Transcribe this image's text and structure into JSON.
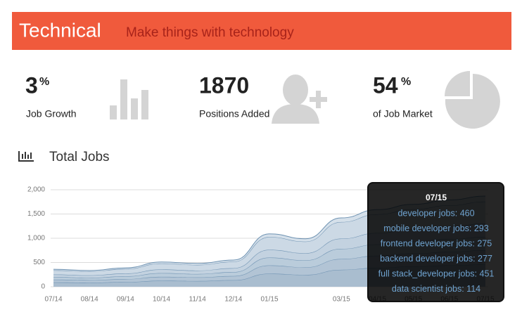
{
  "header": {
    "title": "Technical",
    "subtitle": "Make things with technology"
  },
  "stats": [
    {
      "value": 3,
      "unit": "%",
      "label": "Job Growth"
    },
    {
      "value": 1870,
      "label": "Positions Added"
    },
    {
      "value": 54,
      "unit": "%",
      "label": "of Job Market"
    }
  ],
  "section_title": "Total Jobs",
  "chart_data": {
    "type": "stacked-area",
    "categories": [
      "07/14",
      "08/14",
      "09/14",
      "10/14",
      "11/14",
      "12/14",
      "01/15",
      null,
      "03/15",
      "04/15",
      "05/15",
      "06/15",
      "07/15"
    ],
    "series": [
      {
        "name": "developer jobs",
        "color": "#a9bdcf",
        "values": [
          90,
          84,
          97,
          125,
          118,
          135,
          270,
          245,
          350,
          390,
          420,
          440,
          460
        ]
      },
      {
        "name": "mobile developer jobs",
        "color": "#b2c4d5",
        "values": [
          56,
          52,
          61,
          80,
          75,
          86,
          171,
          155,
          223,
          250,
          266,
          280,
          293
        ]
      },
      {
        "name": "frontend developer jobs",
        "color": "#baccdb",
        "values": [
          53,
          49,
          57,
          75,
          70,
          81,
          160,
          145,
          209,
          234,
          250,
          263,
          275
        ]
      },
      {
        "name": "backend developer jobs",
        "color": "#c3d2e0",
        "values": [
          53,
          50,
          58,
          76,
          71,
          81,
          161,
          147,
          210,
          235,
          252,
          265,
          277
        ]
      },
      {
        "name": "full stack_developer jobs",
        "color": "#ccd9e5",
        "values": [
          87,
          81,
          94,
          124,
          116,
          133,
          263,
          240,
          343,
          385,
          409,
          431,
          451
        ]
      },
      {
        "name": "data scientist jobs",
        "color": "#d5e0ea",
        "values": [
          21,
          19,
          23,
          30,
          30,
          34,
          65,
          58,
          85,
          96,
          103,
          111,
          114
        ]
      }
    ],
    "ylim": [
      0,
      2000
    ],
    "yticks": [
      0,
      {
        "value": 500,
        "label": "500"
      },
      {
        "value": 1000,
        "label": "1,000"
      },
      {
        "value": 1500,
        "label": "1,500"
      },
      {
        "value": 2000,
        "label": "2,000"
      }
    ],
    "grid": true,
    "tooltip": {
      "title": "07/15",
      "lines": [
        "developer jobs: 460",
        "mobile developer jobs: 293",
        "frontend developer jobs: 275",
        "backend developer jobs: 277",
        "full stack_developer jobs: 451",
        "data scientist jobs: 114"
      ]
    }
  }
}
